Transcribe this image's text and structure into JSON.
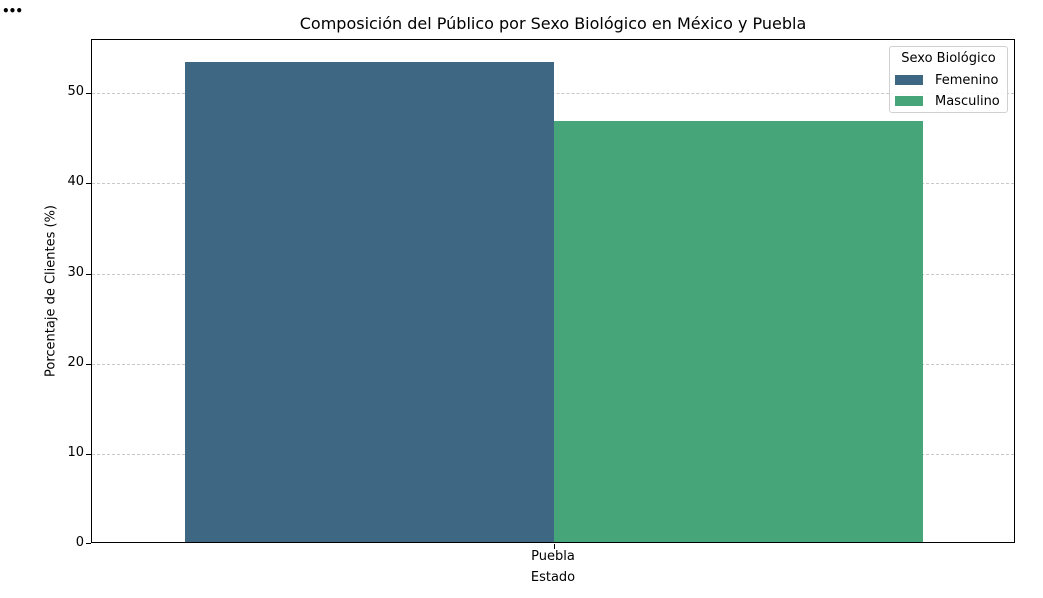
{
  "ui": {
    "menu_dots": "•••"
  },
  "chart_data": {
    "type": "bar",
    "title": "Composición del Público por Sexo Biológico en México y Puebla",
    "xlabel": "Estado",
    "ylabel": "Porcentaje de Clientes (%)",
    "categories": [
      "Puebla"
    ],
    "series": [
      {
        "name": "Femenino",
        "values": [
          53.2
        ],
        "color": "#3e6783"
      },
      {
        "name": "Masculino",
        "values": [
          46.7
        ],
        "color": "#47a679"
      }
    ],
    "ylim": [
      0,
      55.9
    ],
    "yticks": [
      0,
      10,
      20,
      30,
      40,
      50
    ],
    "grid": true,
    "legend": {
      "title": "Sexo Biológico",
      "position": "upper right"
    }
  }
}
